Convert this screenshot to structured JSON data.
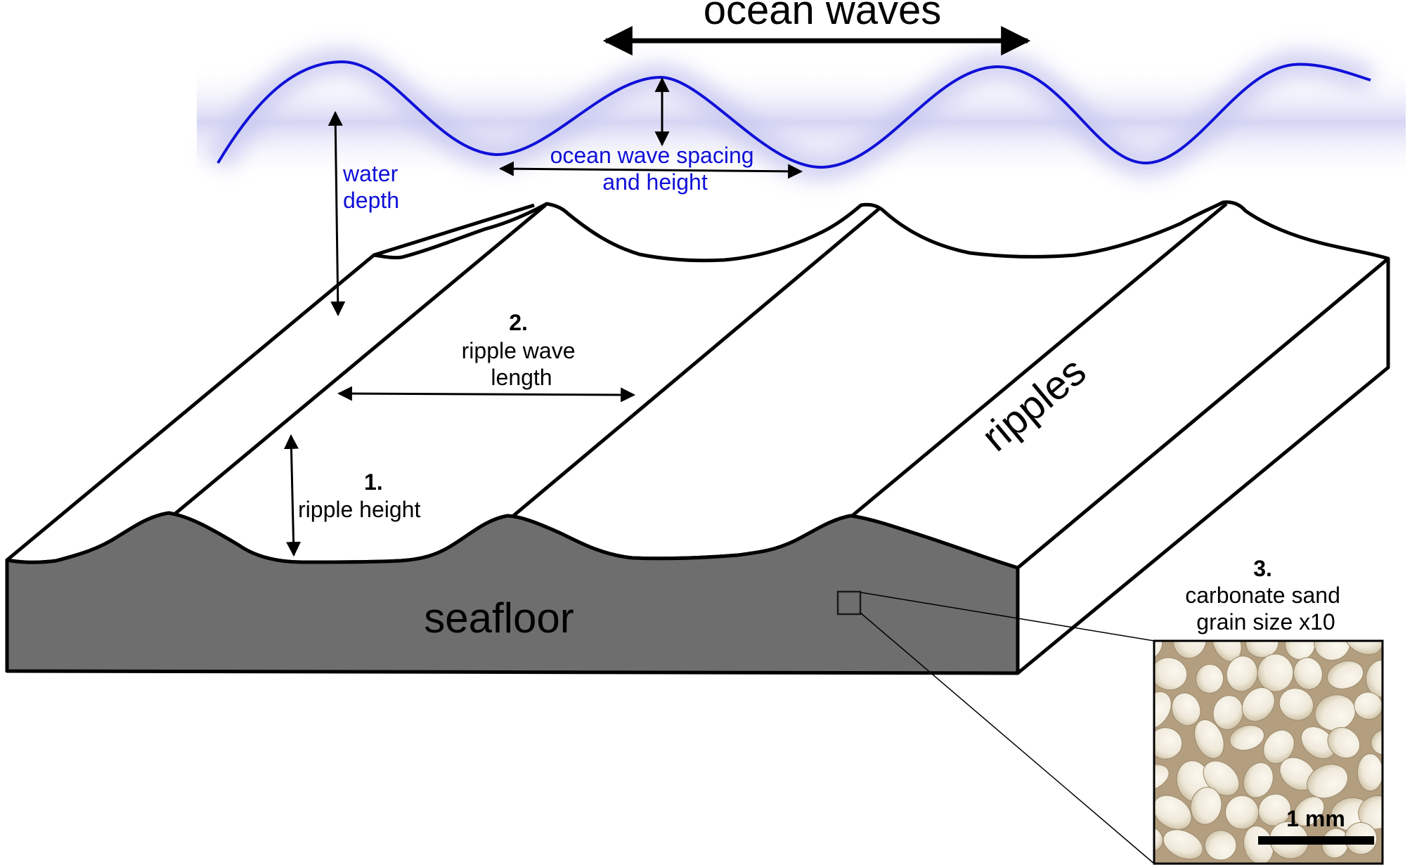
{
  "title": "ocean waves",
  "labels": {
    "water_depth": [
      "water",
      "depth"
    ],
    "ocean_wave_spacing": [
      "ocean wave spacing",
      "and height"
    ],
    "ripple_wave_length": {
      "number": "2.",
      "lines": [
        "ripple wave",
        "length"
      ]
    },
    "ripple_height": {
      "number": "1.",
      "lines": [
        "ripple height"
      ]
    },
    "ripples": "ripples",
    "seafloor": "seafloor",
    "grain_size": {
      "number": "3.",
      "lines": [
        "carbonate sand",
        "grain size x10"
      ]
    },
    "scale_bar": "1 mm"
  },
  "colors": {
    "wave": "#1010d8",
    "wave_glow": "#dcdcf6",
    "seafloor": "#6e6e6e",
    "outline": "#000000",
    "sand_bg": "#b9a88c",
    "grain": "#f1ece0"
  },
  "icons": {
    "top_arrow": "double-headed-arrow",
    "dimension_arrows": "double-headed-arrow"
  }
}
